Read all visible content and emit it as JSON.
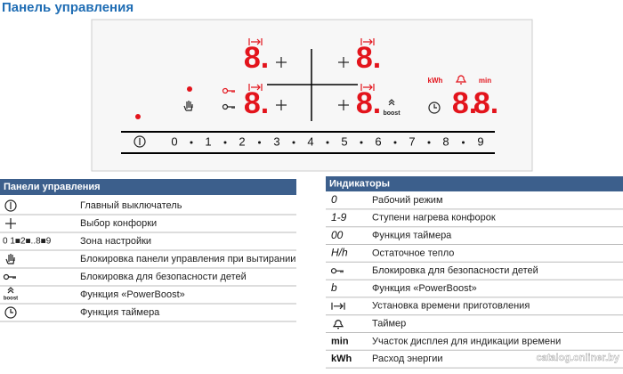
{
  "header": {
    "title": "Панель управления"
  },
  "panel": {
    "displays": [
      "8.",
      "8.",
      "8.",
      "8.",
      "8.",
      "8."
    ],
    "kwh": "kWh",
    "min": "min",
    "boost": "boost",
    "scale": [
      "0",
      "1",
      "2",
      "3",
      "4",
      "5",
      "6",
      "7",
      "8",
      "9"
    ]
  },
  "left_table": {
    "title": "Панели управления",
    "rows": [
      {
        "text": "Главный выключатель"
      },
      {
        "text": "Выбор конфорки"
      },
      {
        "symbol": "0 1■2■..8■9",
        "text": "Зона настройки"
      },
      {
        "text": "Блокировка панели управления при вытирании"
      },
      {
        "text": "Блокировка для безопасности детей"
      },
      {
        "symbol": "boost",
        "text": "Функция «PowerBoost»"
      },
      {
        "text": "Функция таймера"
      }
    ]
  },
  "right_table": {
    "title": "Индикаторы",
    "rows": [
      {
        "symbol": "0",
        "text": "Рабочий режим"
      },
      {
        "symbol": "1-9",
        "text": "Ступени нагрева конфорок"
      },
      {
        "symbol": "00",
        "text": "Функция таймера"
      },
      {
        "symbol": "H/h",
        "text": "Остаточное тепло"
      },
      {
        "text": "Блокировка для безопасности детей"
      },
      {
        "symbol": "b",
        "text": "Функция «PowerBoost»"
      },
      {
        "text": "Установка времени приготовления"
      },
      {
        "text": "Таймер"
      },
      {
        "symbol": "min",
        "text": "Участок дисплея для индикации времени"
      },
      {
        "symbol": "kWh",
        "text": "Расход энергии"
      }
    ]
  },
  "watermark": "catalog.onliner.by"
}
